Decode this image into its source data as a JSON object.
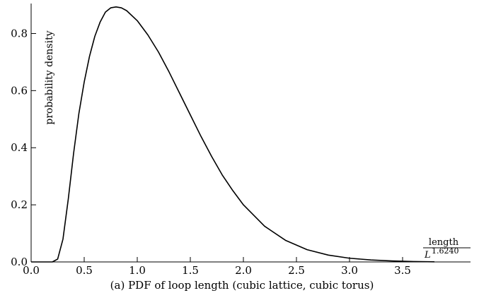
{
  "chart_data": {
    "type": "line",
    "caption": "(a) PDF of loop length (cubic lattice, cubic torus)",
    "y_label": "probability density",
    "x_label": {
      "numerator": "length",
      "denominator": "L",
      "exponent": "1.6240"
    },
    "x": [
      0,
      0.1,
      0.2,
      0.25,
      0.3,
      0.35,
      0.4,
      0.45,
      0.5,
      0.55,
      0.6,
      0.65,
      0.7,
      0.75,
      0.8,
      0.85,
      0.9,
      1.0,
      1.1,
      1.2,
      1.3,
      1.4,
      1.5,
      1.6,
      1.7,
      1.8,
      1.9,
      2.0,
      2.2,
      2.4,
      2.6,
      2.8,
      3.0,
      3.2,
      3.4,
      3.6,
      3.8
    ],
    "series": [
      {
        "name": "PDF",
        "color": "#000000",
        "values": [
          0,
          0,
          0,
          0.01,
          0.08,
          0.22,
          0.38,
          0.52,
          0.63,
          0.72,
          0.79,
          0.84,
          0.875,
          0.89,
          0.893,
          0.89,
          0.88,
          0.845,
          0.795,
          0.735,
          0.665,
          0.59,
          0.515,
          0.44,
          0.37,
          0.305,
          0.25,
          0.2,
          0.125,
          0.075,
          0.043,
          0.024,
          0.013,
          0.007,
          0.0035,
          0.0015,
          0.0005
        ]
      }
    ],
    "xlim": [
      0,
      4.14
    ],
    "ylim": [
      0,
      0.905
    ],
    "xticks": [
      {
        "value": 0,
        "label": "0.0"
      },
      0.5,
      {
        "value": 1,
        "label": "1.0"
      },
      1.5,
      {
        "value": 2,
        "label": "2.0"
      },
      2.5,
      {
        "value": 3,
        "label": "3.0"
      },
      3.5
    ],
    "yticks": [
      {
        "value": 0,
        "label": "0.0"
      },
      0.2,
      0.4,
      0.6,
      0.8
    ]
  }
}
